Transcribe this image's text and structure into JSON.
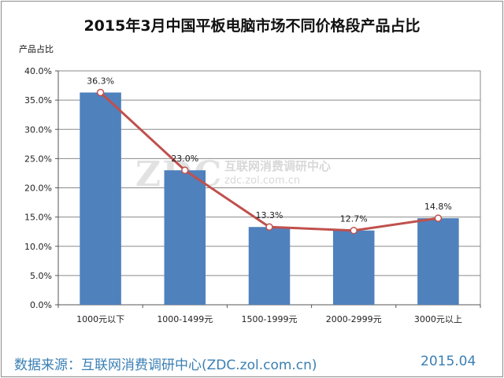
{
  "chart_data": {
    "type": "bar",
    "title": "2015年3月中国平板电脑市场不同价格段产品占比",
    "ylabel": "产品占比",
    "xlabel": "",
    "categories": [
      "1000元以下",
      "1000-1499元",
      "1500-1999元",
      "2000-2999元",
      "3000元以上"
    ],
    "values": [
      36.3,
      23.0,
      13.3,
      12.7,
      14.8
    ],
    "data_labels": [
      "36.3%",
      "23.0%",
      "13.3%",
      "12.7%",
      "14.8%"
    ],
    "overlay_line": true,
    "ylim": [
      0,
      40
    ],
    "yticks": [
      "0.0%",
      "5.0%",
      "10.0%",
      "15.0%",
      "20.0%",
      "25.0%",
      "30.0%",
      "35.0%",
      "40.0%"
    ],
    "grid": true,
    "legend": "none",
    "colors": {
      "bar": "#4f81bd",
      "line": "#c0504d",
      "marker_fill": "#ffffff",
      "source_text": "#3a7fb4"
    }
  },
  "footer": {
    "source": "数据来源：互联网消费调研中心(ZDC.zol.com.cn)",
    "date": "2015.04"
  },
  "watermark": {
    "logo": "ZDC",
    "line1": "互联网消费调研中心",
    "line2": "zdc.zol.com.cn"
  }
}
